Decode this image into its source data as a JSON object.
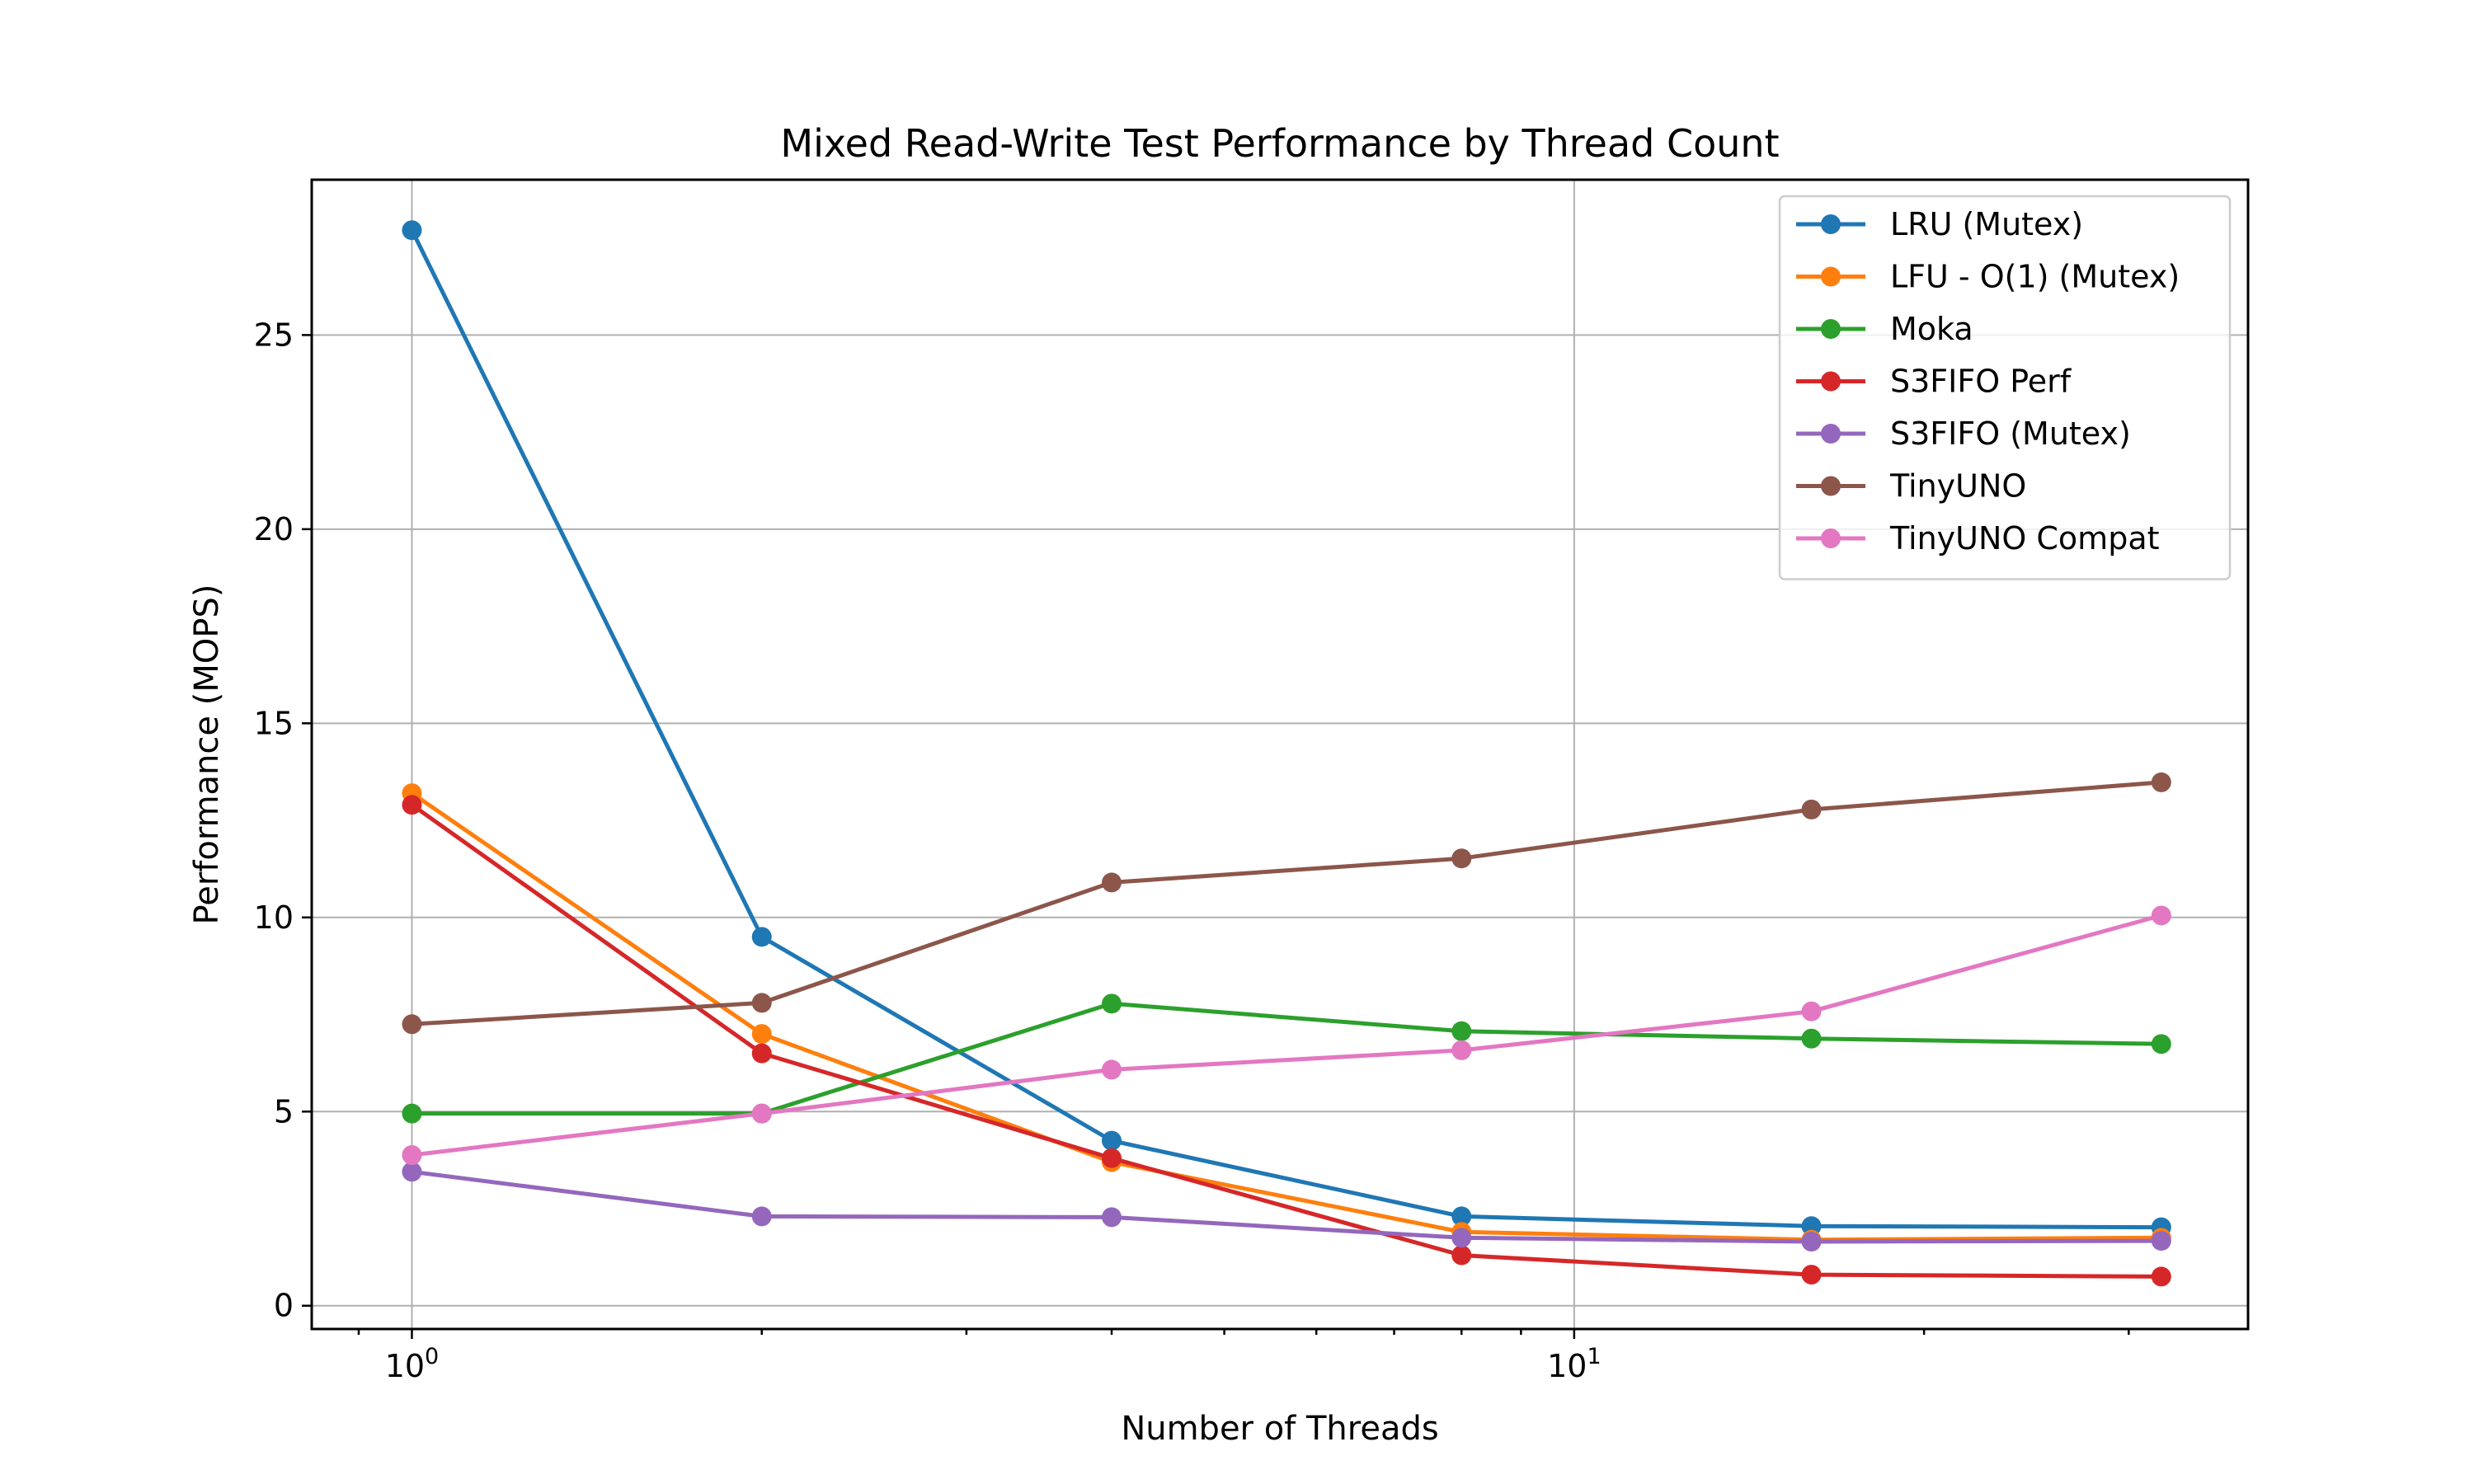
{
  "chart_data": {
    "type": "line",
    "title": "Mixed Read-Write Test Performance by Thread Count",
    "xlabel": "Number of Threads",
    "ylabel": "Performance (MOPS)",
    "x_scale": "log",
    "xlim": [
      0.82,
      38
    ],
    "ylim": [
      -0.6,
      29
    ],
    "x_major_ticks": [
      {
        "value": 1,
        "base": "10",
        "exp": "0"
      },
      {
        "value": 10,
        "base": "10",
        "exp": "1"
      }
    ],
    "y_ticks": [
      {
        "value": 0,
        "label": "0"
      },
      {
        "value": 5,
        "label": "5"
      },
      {
        "value": 10,
        "label": "10"
      },
      {
        "value": 15,
        "label": "15"
      },
      {
        "value": 20,
        "label": "20"
      },
      {
        "value": 25,
        "label": "25"
      }
    ],
    "grid": true,
    "legend_position": "top-right",
    "x": [
      1,
      2,
      4,
      8,
      16,
      32
    ],
    "series": [
      {
        "name": "LRU (Mutex)",
        "color": "#1f77b4",
        "values": [
          27.7,
          9.5,
          4.25,
          2.3,
          2.05,
          2.02
        ]
      },
      {
        "name": "LFU - O(1) (Mutex)",
        "color": "#ff7f0e",
        "values": [
          13.2,
          7.0,
          3.7,
          1.9,
          1.7,
          1.75
        ]
      },
      {
        "name": "Moka",
        "color": "#2ca02c",
        "values": [
          4.95,
          4.95,
          7.78,
          7.07,
          6.88,
          6.74
        ]
      },
      {
        "name": "S3FIFO Perf",
        "color": "#d62728",
        "values": [
          12.9,
          6.5,
          3.8,
          1.3,
          0.8,
          0.75
        ]
      },
      {
        "name": "S3FIFO (Mutex)",
        "color": "#9467bd",
        "values": [
          3.45,
          2.3,
          2.28,
          1.75,
          1.65,
          1.67
        ]
      },
      {
        "name": "TinyUNO",
        "color": "#8c564b",
        "values": [
          7.25,
          7.8,
          10.9,
          11.52,
          12.78,
          13.48
        ]
      },
      {
        "name": "TinyUNO Compat",
        "color": "#e377c2",
        "values": [
          3.88,
          4.95,
          6.08,
          6.58,
          7.58,
          10.05
        ]
      }
    ]
  }
}
